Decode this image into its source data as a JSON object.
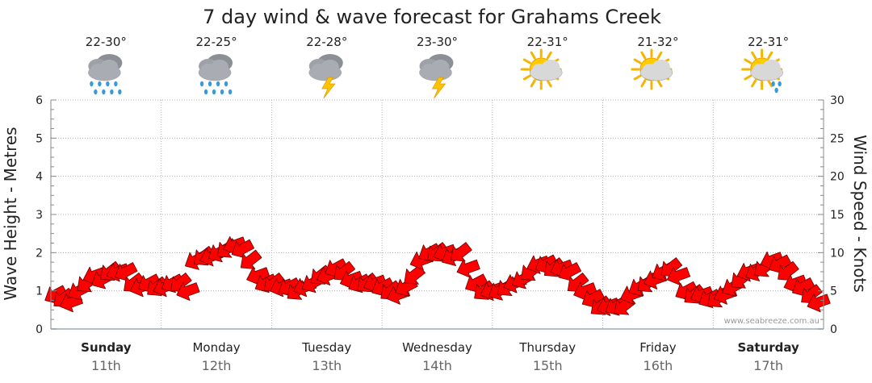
{
  "chart_data": {
    "type": "wind-wave-forecast",
    "title": "7 day wind & wave forecast for Grahams Creek",
    "ylabel_left": "Wave Height - Metres",
    "ylabel_right": "Wind Speed - Knots",
    "ylim_left": [
      0,
      6
    ],
    "ylim_right": [
      0,
      30
    ],
    "yticks_left": [
      "0",
      "1",
      "2",
      "3",
      "4",
      "5",
      "6"
    ],
    "yticks_right": [
      "0",
      "5",
      "10",
      "15",
      "20",
      "25",
      "30"
    ],
    "days": [
      {
        "name": "Sunday",
        "date": "11th",
        "bold": true,
        "temp": "22-30°",
        "icon": "rain-cloud-icon"
      },
      {
        "name": "Monday",
        "date": "12th",
        "bold": false,
        "temp": "22-25°",
        "icon": "rain-cloud-icon"
      },
      {
        "name": "Tuesday",
        "date": "13th",
        "bold": false,
        "temp": "22-28°",
        "icon": "storm-cloud-icon"
      },
      {
        "name": "Wednesday",
        "date": "14th",
        "bold": false,
        "temp": "23-30°",
        "icon": "storm-cloud-icon"
      },
      {
        "name": "Thursday",
        "date": "15th",
        "bold": false,
        "temp": "22-31°",
        "icon": "partly-sunny-icon"
      },
      {
        "name": "Friday",
        "date": "16th",
        "bold": false,
        "temp": "21-32°",
        "icon": "partly-sunny-icon"
      },
      {
        "name": "Saturday",
        "date": "17th",
        "bold": true,
        "temp": "22-31°",
        "icon": "sun-shower-icon"
      }
    ],
    "wind_knots": [
      4.5,
      4,
      3.5,
      5,
      6,
      7,
      6.5,
      7.5,
      7.5,
      7.5,
      6,
      5.5,
      6,
      5.5,
      5.5,
      6,
      6,
      5,
      9,
      9.5,
      9.5,
      10,
      10.5,
      11,
      10.5,
      9,
      7,
      6,
      6,
      5.5,
      5.5,
      5,
      5.5,
      6,
      7,
      7,
      8,
      7.5,
      6.5,
      6,
      6,
      6,
      5.5,
      5,
      4.5,
      5.5,
      7,
      9,
      10,
      10,
      10,
      9.5,
      10,
      8,
      6,
      5,
      5,
      5,
      5.5,
      6,
      6.5,
      7.5,
      8.5,
      8.5,
      8,
      8,
      7.5,
      6,
      5,
      4,
      3,
      3,
      3,
      3,
      4.5,
      5.5,
      6,
      6.5,
      7.5,
      8,
      7,
      5,
      4.5,
      4.5,
      4,
      4,
      4.5,
      5.5,
      6.5,
      7.5,
      7.5,
      8,
      9,
      8.5,
      7.5,
      6,
      5.5,
      4.5,
      3.5
    ],
    "wind_direction": "northerly-westerly (arrows pointing upper-left)",
    "credit": "www.seabreeze.com.au"
  }
}
